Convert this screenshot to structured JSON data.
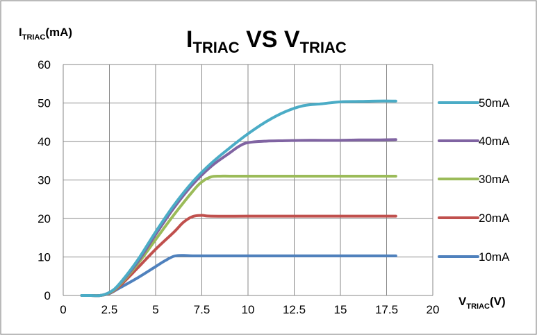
{
  "chart_data": {
    "type": "line",
    "title": {
      "main": "I",
      "main_sub": "TRIAC",
      "mid": " VS ",
      "tail": "V",
      "tail_sub": "TRIAC"
    },
    "ylabel": {
      "main": "I",
      "sub": "TRIAC",
      "unit": "(mA)"
    },
    "xlabel": {
      "main": "V",
      "sub": "TRIAC",
      "unit": "(V)"
    },
    "xlim": [
      0,
      20
    ],
    "ylim": [
      0,
      60
    ],
    "x_ticks": [
      "0",
      "2.5",
      "5",
      "7.5",
      "10",
      "12.5",
      "15",
      "17.5",
      "20"
    ],
    "y_ticks": [
      "0",
      "10",
      "20",
      "30",
      "40",
      "50",
      "60"
    ],
    "grid": true,
    "legend_position": "right",
    "series": [
      {
        "name": "50mA",
        "color": "#4BACC6",
        "points": [
          [
            1,
            0
          ],
          [
            1.5,
            0
          ],
          [
            2,
            0
          ],
          [
            2.5,
            0.8
          ],
          [
            3,
            2.8
          ],
          [
            4,
            9
          ],
          [
            5,
            16.5
          ],
          [
            6,
            23.5
          ],
          [
            7,
            29.5
          ],
          [
            8,
            34.3
          ],
          [
            9,
            38.3
          ],
          [
            10,
            42
          ],
          [
            11,
            45.2
          ],
          [
            12,
            47.7
          ],
          [
            13,
            49.3
          ],
          [
            14,
            49.8
          ],
          [
            15,
            50.3
          ],
          [
            16,
            50.4
          ],
          [
            17,
            50.5
          ],
          [
            18,
            50.5
          ]
        ]
      },
      {
        "name": "40mA",
        "color": "#8064A2",
        "points": [
          [
            1,
            0
          ],
          [
            1.5,
            0
          ],
          [
            2,
            0
          ],
          [
            2.5,
            0.8
          ],
          [
            3,
            2.7
          ],
          [
            4,
            8.5
          ],
          [
            5,
            15.8
          ],
          [
            6,
            22.8
          ],
          [
            7,
            28.8
          ],
          [
            8,
            33.5
          ],
          [
            9,
            37
          ],
          [
            9.5,
            38.7
          ],
          [
            10,
            39.7
          ],
          [
            11,
            40.1
          ],
          [
            12,
            40.2
          ],
          [
            13,
            40.3
          ],
          [
            14,
            40.3
          ],
          [
            15,
            40.3
          ],
          [
            16,
            40.4
          ],
          [
            17,
            40.4
          ],
          [
            18,
            40.5
          ]
        ]
      },
      {
        "name": "30mA",
        "color": "#9BBB59",
        "points": [
          [
            1,
            0
          ],
          [
            1.5,
            0
          ],
          [
            2,
            0
          ],
          [
            2.5,
            0.7
          ],
          [
            3,
            2.5
          ],
          [
            4,
            8
          ],
          [
            5,
            14.5
          ],
          [
            6,
            21
          ],
          [
            7,
            27
          ],
          [
            7.5,
            29.5
          ],
          [
            8,
            30.8
          ],
          [
            8.5,
            31
          ],
          [
            9,
            31
          ],
          [
            10,
            31
          ],
          [
            12,
            31
          ],
          [
            14,
            31
          ],
          [
            16,
            31
          ],
          [
            18,
            31
          ]
        ]
      },
      {
        "name": "20mA",
        "color": "#C0504D",
        "points": [
          [
            1,
            0
          ],
          [
            1.5,
            0
          ],
          [
            2,
            0
          ],
          [
            2.5,
            0.6
          ],
          [
            3,
            2.2
          ],
          [
            4,
            7
          ],
          [
            5,
            12
          ],
          [
            6,
            16.5
          ],
          [
            6.5,
            19
          ],
          [
            7,
            20.5
          ],
          [
            7.5,
            20.8
          ],
          [
            8,
            20.6
          ],
          [
            10,
            20.6
          ],
          [
            12,
            20.6
          ],
          [
            14,
            20.6
          ],
          [
            16,
            20.6
          ],
          [
            18,
            20.6
          ]
        ]
      },
      {
        "name": "10mA",
        "color": "#4F81BD",
        "points": [
          [
            1,
            0
          ],
          [
            1.5,
            0
          ],
          [
            2,
            0
          ],
          [
            2.5,
            0.5
          ],
          [
            3,
            1.8
          ],
          [
            4,
            4.5
          ],
          [
            5,
            7.5
          ],
          [
            5.5,
            9
          ],
          [
            6,
            10.2
          ],
          [
            6.5,
            10.4
          ],
          [
            7,
            10.3
          ],
          [
            8,
            10.3
          ],
          [
            10,
            10.3
          ],
          [
            12,
            10.3
          ],
          [
            14,
            10.3
          ],
          [
            16,
            10.3
          ],
          [
            18,
            10.3
          ]
        ]
      }
    ]
  }
}
